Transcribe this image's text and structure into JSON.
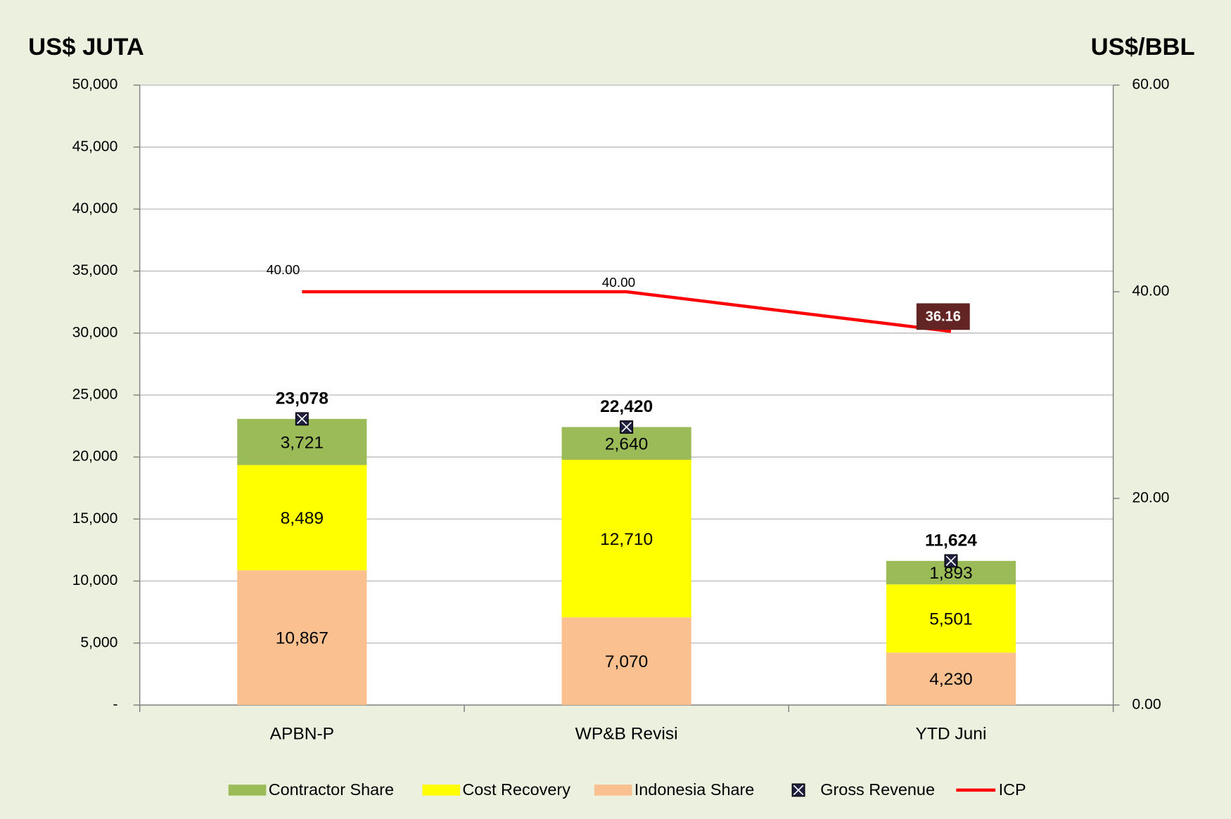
{
  "chart_data": {
    "type": "bar",
    "stacked": true,
    "y_label": "US$ JUTA",
    "y2_label": "US$/BBL",
    "categories": [
      "APBN-P",
      "WP&B Revisi",
      "YTD Juni"
    ],
    "series": [
      {
        "name": "Contractor Share",
        "type": "bar",
        "color": "#9bbb59",
        "values": [
          3721,
          2640,
          1893
        ],
        "value_labels": [
          "3,721",
          "2,640",
          "1,893"
        ]
      },
      {
        "name": "Cost Recovery",
        "type": "bar",
        "color": "#ffff00",
        "values": [
          8489,
          12710,
          5501
        ],
        "value_labels": [
          "8,489",
          "12,710",
          "5,501"
        ]
      },
      {
        "name": "Indonesia Share",
        "type": "bar",
        "color": "#fac090",
        "values": [
          10867,
          7070,
          4230
        ],
        "value_labels": [
          "10,867",
          "7,070",
          "4,230"
        ]
      },
      {
        "name": "Gross Revenue",
        "type": "scatter",
        "color": "#1f1f3f",
        "values": [
          23078,
          22420,
          11624
        ],
        "value_labels": [
          "23,078",
          "22,420",
          "11,624"
        ]
      },
      {
        "name": "ICP",
        "type": "line",
        "axis": "y2",
        "color": "#ff0000",
        "values": [
          40,
          40,
          36.16
        ],
        "value_labels": [
          "40.00",
          "40.00",
          "36.16"
        ]
      }
    ],
    "ylim": [
      0,
      50000
    ],
    "yticks": [
      {
        "value": 0,
        "label": "-"
      },
      {
        "value": 5000,
        "label": "5,000"
      },
      {
        "value": 10000,
        "label": "10,000"
      },
      {
        "value": 15000,
        "label": "15,000"
      },
      {
        "value": 20000,
        "label": "20,000"
      },
      {
        "value": 25000,
        "label": "25,000"
      },
      {
        "value": 30000,
        "label": "30,000"
      },
      {
        "value": 35000,
        "label": "35,000"
      },
      {
        "value": 40000,
        "label": "40,000"
      },
      {
        "value": 45000,
        "label": "45,000"
      },
      {
        "value": 50000,
        "label": "50,000"
      }
    ],
    "y2lim": [
      0,
      60
    ],
    "y2ticks": [
      {
        "value": 0,
        "label": "0.00"
      },
      {
        "value": 20,
        "label": "20.00"
      },
      {
        "value": 40,
        "label": "40.00"
      },
      {
        "value": 60,
        "label": "60.00"
      }
    ],
    "grid": true,
    "legend": "bottom"
  }
}
